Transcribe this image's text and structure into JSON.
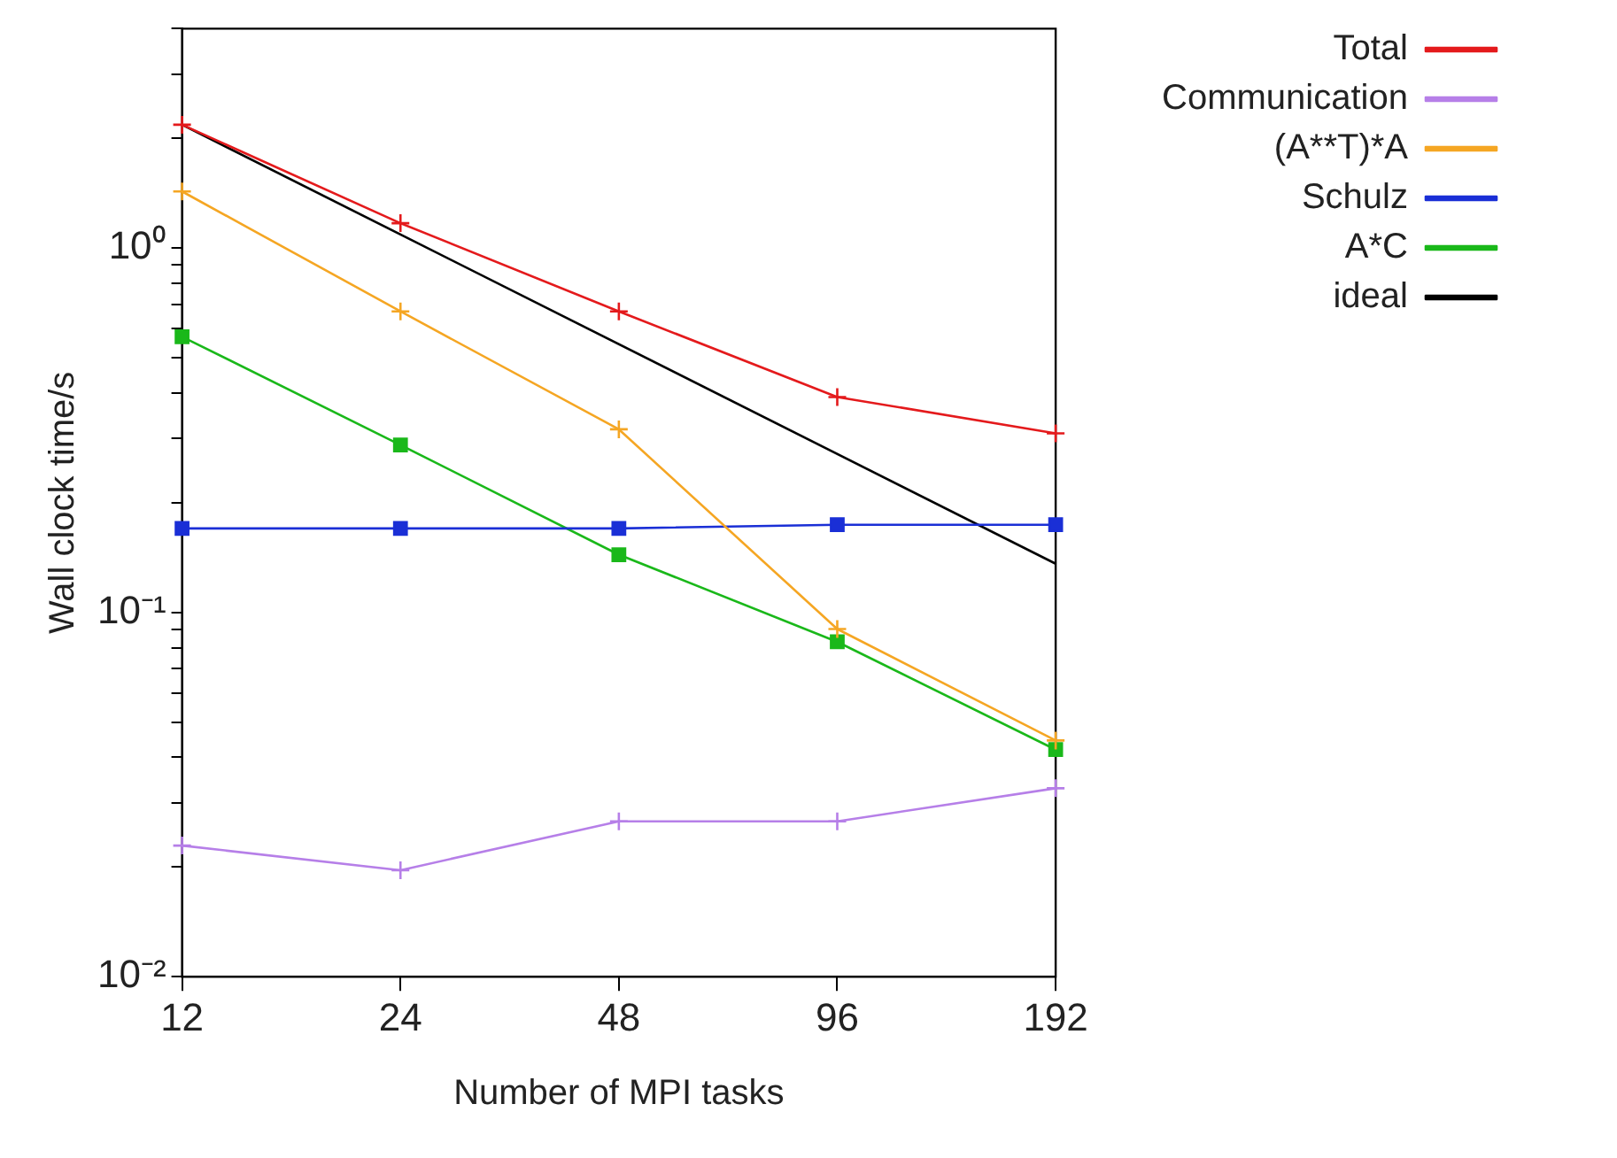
{
  "chart_data": {
    "type": "line",
    "xlabel": "Number of MPI tasks",
    "ylabel": "Wall clock time/s",
    "x": [
      12,
      24,
      48,
      96,
      192
    ],
    "series": [
      {
        "name": "Total",
        "color": "#e41a1c",
        "marker": "cross",
        "values": [
          2.18,
          1.17,
          0.67,
          0.39,
          0.31
        ]
      },
      {
        "name": "Communication",
        "color": "#b67fe8",
        "marker": "cross",
        "values": [
          0.0229,
          0.0196,
          0.0267,
          0.0267,
          0.0329
        ]
      },
      {
        "name": "(A**T)*A",
        "color": "#f5a623",
        "marker": "cross",
        "values": [
          1.43,
          0.67,
          0.318,
          0.09,
          0.0445
        ]
      },
      {
        "name": "Schulz",
        "color": "#1a2fd6",
        "marker": "square",
        "values": [
          0.17,
          0.17,
          0.17,
          0.174,
          0.174
        ]
      },
      {
        "name": "A*C",
        "color": "#1ab81a",
        "marker": "square",
        "values": [
          0.571,
          0.288,
          0.144,
          0.083,
          0.042
        ]
      },
      {
        "name": "ideal",
        "color": "#000000",
        "marker": "none",
        "x": [
          12,
          192
        ],
        "values": [
          2.18,
          0.136
        ]
      }
    ],
    "log": "xy",
    "xlim": [
      12,
      192
    ],
    "xticks": [
      12,
      24,
      48,
      96,
      192
    ],
    "ylim": [
      0.01,
      4
    ],
    "yticks": [
      {
        "value": 0.01,
        "label": "10⁻²"
      },
      {
        "value": 0.02,
        "label": null
      },
      {
        "value": 0.03,
        "label": null
      },
      {
        "value": 0.04,
        "label": null
      },
      {
        "value": 0.05,
        "label": null
      },
      {
        "value": 0.06,
        "label": null
      },
      {
        "value": 0.07,
        "label": null
      },
      {
        "value": 0.08,
        "label": null
      },
      {
        "value": 0.09,
        "label": null
      },
      {
        "value": 0.1,
        "label": "10⁻¹"
      },
      {
        "value": 0.2,
        "label": null
      },
      {
        "value": 0.3,
        "label": null
      },
      {
        "value": 0.4,
        "label": null
      },
      {
        "value": 0.5,
        "label": null
      },
      {
        "value": 0.6,
        "label": null
      },
      {
        "value": 0.7,
        "label": null
      },
      {
        "value": 0.8,
        "label": null
      },
      {
        "value": 0.9,
        "label": null
      },
      {
        "value": 1,
        "label": "10⁰"
      },
      {
        "value": 2,
        "label": null
      },
      {
        "value": 3,
        "label": null
      },
      {
        "value": 4,
        "label": null
      }
    ],
    "grid": false,
    "legend": "top right",
    "line_style": "solid"
  }
}
